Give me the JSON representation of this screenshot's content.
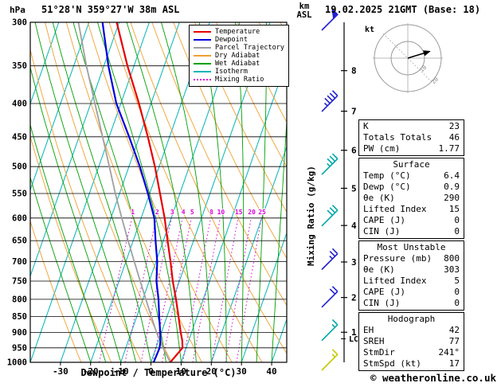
{
  "header": {
    "pressure_unit": "hPa",
    "station": "51°28'N 359°27'W 38m ASL",
    "altitude_unit": "km",
    "altitude_unit2": "ASL",
    "datetime": "19.02.2025 21GMT (Base: 18)"
  },
  "colors": {
    "temperature": "#e80000",
    "dewpoint": "#0000e0",
    "parcel": "#a0a0a0",
    "dry_adiabat": "#f0a030",
    "wet_adiabat": "#00a000",
    "isotherm": "#00b4b4",
    "mixing_ratio": "#d800d8",
    "grid": "#000000",
    "barb_high": "#2020d0",
    "barb_mid": "#00a8a8",
    "barb_low": "#c8c800"
  },
  "legend": {
    "items": [
      {
        "label": "Temperature",
        "color_key": "temperature",
        "dotted": false
      },
      {
        "label": "Dewpoint",
        "color_key": "dewpoint",
        "dotted": false
      },
      {
        "label": "Parcel Trajectory",
        "color_key": "parcel",
        "dotted": false
      },
      {
        "label": "Dry Adiabat",
        "color_key": "dry_adiabat",
        "dotted": false
      },
      {
        "label": "Wet Adiabat",
        "color_key": "wet_adiabat",
        "dotted": false
      },
      {
        "label": "Isotherm",
        "color_key": "isotherm",
        "dotted": false
      },
      {
        "label": "Mixing Ratio",
        "color_key": "mixing_ratio",
        "dotted": true
      }
    ]
  },
  "axes": {
    "pressure_ticks": [
      300,
      350,
      400,
      450,
      500,
      550,
      600,
      650,
      700,
      750,
      800,
      850,
      900,
      950,
      1000
    ],
    "temperature_ticks": [
      -30,
      -20,
      -10,
      0,
      10,
      20,
      30,
      40
    ],
    "xlabel": "Dewpoint / Temperature (°C)",
    "mixing_ratio_axis_label": "Mixing Ratio (g/kg)",
    "mixing_ratio_values": [
      1,
      2,
      3,
      4,
      5,
      8,
      10,
      15,
      20,
      25
    ],
    "km_ticks": [
      {
        "km": 1,
        "pressure": 899
      },
      {
        "km": 2,
        "pressure": 795
      },
      {
        "km": 3,
        "pressure": 701
      },
      {
        "km": 4,
        "pressure": 616
      },
      {
        "km": 5,
        "pressure": 540
      },
      {
        "km": 6,
        "pressure": 472
      },
      {
        "km": 7,
        "pressure": 411
      },
      {
        "km": 8,
        "pressure": 356
      }
    ],
    "lcl_label": "LCL",
    "lcl_pressure": 920
  },
  "wind_barbs": [
    {
      "pressure": 300,
      "speed_kt": 50,
      "color_key": "barb_high"
    },
    {
      "pressure": 400,
      "speed_kt": 45,
      "color_key": "barb_high"
    },
    {
      "pressure": 500,
      "speed_kt": 35,
      "color_key": "barb_mid"
    },
    {
      "pressure": 600,
      "speed_kt": 30,
      "color_key": "barb_mid"
    },
    {
      "pressure": 700,
      "speed_kt": 25,
      "color_key": "barb_high"
    },
    {
      "pressure": 800,
      "speed_kt": 20,
      "color_key": "barb_high"
    },
    {
      "pressure": 900,
      "speed_kt": 15,
      "color_key": "barb_mid"
    },
    {
      "pressure": 1000,
      "speed_kt": 15,
      "color_key": "barb_low"
    }
  ],
  "hodograph": {
    "unit_label": "kt",
    "rings_kt": [
      10,
      20
    ],
    "ring_labels": [
      "10",
      "20"
    ],
    "arrow": {
      "u_kt": 13,
      "v_kt": 4
    }
  },
  "stats_boxes": [
    {
      "rows": [
        [
          "K",
          "23"
        ],
        [
          "Totals Totals",
          "46"
        ],
        [
          "PW (cm)",
          "1.77"
        ]
      ]
    },
    {
      "title": "Surface",
      "rows": [
        [
          "Temp (°C)",
          "6.4"
        ],
        [
          "Dewp (°C)",
          "0.9"
        ],
        [
          "θe (K)",
          "290"
        ],
        [
          "Lifted Index",
          "15"
        ],
        [
          "CAPE (J)",
          "0"
        ],
        [
          "CIN (J)",
          "0"
        ]
      ]
    },
    {
      "title": "Most Unstable",
      "rows": [
        [
          "Pressure (mb)",
          "800"
        ],
        [
          "θe (K)",
          "303"
        ],
        [
          "Lifted Index",
          "5"
        ],
        [
          "CAPE (J)",
          "0"
        ],
        [
          "CIN (J)",
          "0"
        ]
      ]
    },
    {
      "title": "Hodograph",
      "rows": [
        [
          "EH",
          "42"
        ],
        [
          "SREH",
          "77"
        ],
        [
          "StmDir",
          "241°"
        ],
        [
          "StmSpd (kt)",
          "17"
        ]
      ]
    }
  ],
  "footer": {
    "copyright": "© weatheronline.co.uk"
  },
  "chart_data": {
    "type": "line",
    "title": "Skew-T log-P sounding, 51°28'N 359°27'W 38m ASL, 19.02.2025 21GMT (Base: 18)",
    "x_axis": {
      "label": "Dewpoint / Temperature (°C)",
      "ticks": [
        -30,
        -20,
        -10,
        0,
        10,
        20,
        30,
        40
      ]
    },
    "y_axis": {
      "label": "hPa",
      "scale": "log",
      "ticks": [
        300,
        350,
        400,
        450,
        500,
        550,
        600,
        650,
        700,
        750,
        800,
        850,
        900,
        950,
        1000
      ]
    },
    "legend_position": "top-right-inside",
    "grid": true,
    "pressure_hPa": [
      1000,
      950,
      925,
      900,
      850,
      800,
      750,
      700,
      650,
      600,
      550,
      500,
      450,
      400,
      350,
      300
    ],
    "series": [
      {
        "name": "Temperature",
        "unit": "°C",
        "values": [
          6.4,
          8.8,
          7.8,
          6.4,
          3.8,
          1.0,
          -2.2,
          -5.2,
          -8.6,
          -12.2,
          -16.6,
          -21.4,
          -27.2,
          -34.0,
          -42.2,
          -50.8
        ]
      },
      {
        "name": "Dewpoint",
        "unit": "°C",
        "values": [
          0.9,
          1.2,
          0.6,
          -0.4,
          -2.6,
          -4.8,
          -7.6,
          -9.6,
          -12.6,
          -15.6,
          -20.6,
          -26.4,
          -33.4,
          -41.5,
          -48.5,
          -55.5
        ]
      },
      {
        "name": "Parcel Trajectory",
        "unit": "°C",
        "values": [
          6.4,
          2.3,
          0.4,
          -1.6,
          -5.2,
          -9.0,
          -13.0,
          -17.2,
          -21.7,
          -26.4,
          -31.4,
          -36.5,
          -42.2,
          -48.6,
          -55.8,
          -63.5
        ]
      }
    ]
  }
}
